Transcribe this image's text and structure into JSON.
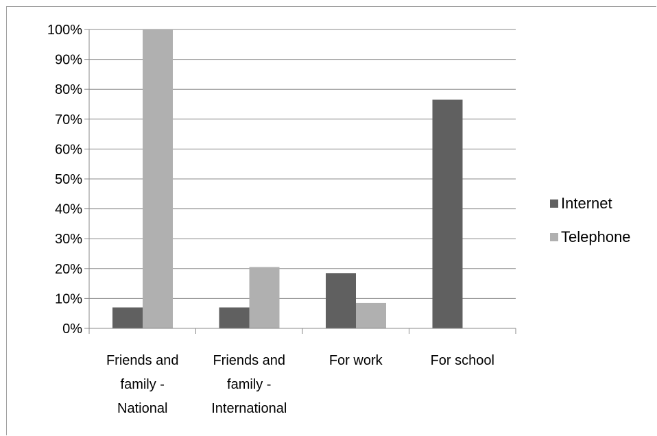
{
  "chart_data": {
    "type": "bar",
    "title": "",
    "xlabel": "",
    "ylabel": "",
    "categories": [
      "Friends and family - National",
      "Friends and family - International",
      "For work",
      "For school"
    ],
    "category_lines": [
      [
        "Friends and",
        "family -",
        "National"
      ],
      [
        "Friends and",
        "family -",
        "International"
      ],
      [
        "For work"
      ],
      [
        "For school"
      ]
    ],
    "series": [
      {
        "name": "Internet",
        "values": [
          7,
          7,
          18.5,
          76.5
        ],
        "color": "#606060"
      },
      {
        "name": "Telephone",
        "values": [
          100,
          20.5,
          8.5,
          0
        ],
        "color": "#b0b0b0"
      }
    ],
    "ylim": [
      0,
      100
    ],
    "yticks": [
      0,
      10,
      20,
      30,
      40,
      50,
      60,
      70,
      80,
      90,
      100
    ],
    "ytick_labels": [
      "0%",
      "10%",
      "20%",
      "30%",
      "40%",
      "50%",
      "60%",
      "70%",
      "80%",
      "90%",
      "100%"
    ],
    "grid": true,
    "gridline_color": "#888888",
    "axis_color": "#888888",
    "legend": {
      "position": "right",
      "entries": [
        "Internet",
        "Telephone"
      ]
    }
  }
}
